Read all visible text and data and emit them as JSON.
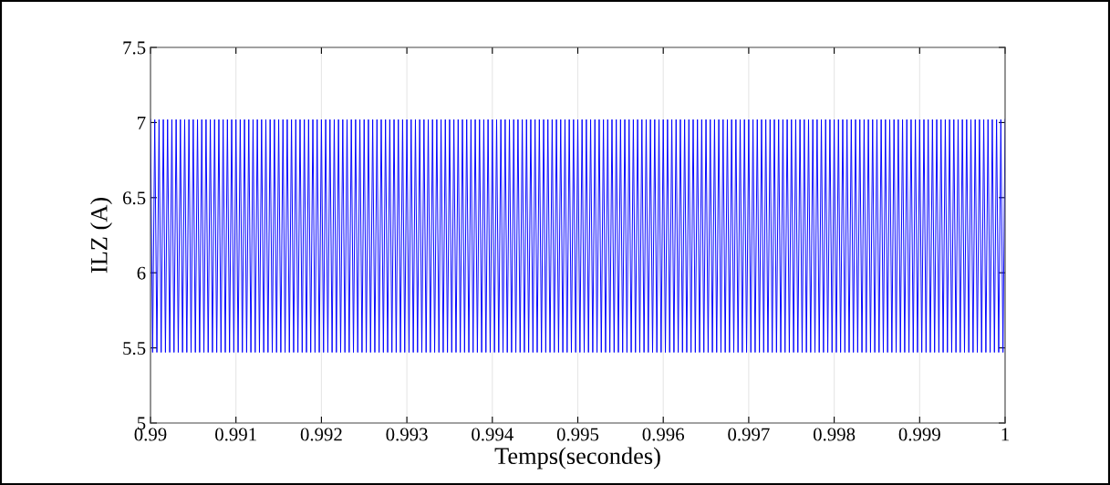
{
  "chart_data": {
    "type": "line",
    "xlabel": "Temps(secondes)",
    "ylabel": "ILZ (A)",
    "xlim": [
      0.99,
      1
    ],
    "ylim": [
      5,
      7.5
    ],
    "xticks": [
      0.99,
      0.991,
      0.992,
      0.993,
      0.994,
      0.995,
      0.996,
      0.997,
      0.998,
      0.999,
      1
    ],
    "yticks": [
      5,
      5.5,
      6,
      6.5,
      7,
      7.5
    ],
    "grid": "x",
    "marker": "none",
    "line_style": "solid",
    "series": [
      {
        "color": "#0000ff",
        "x": [
          0.99,
          0.990025,
          0.99005,
          0.990075,
          0.9901,
          0.990125,
          0.99015,
          0.990175,
          0.9902,
          0.990225,
          0.99025,
          0.990275,
          0.9903,
          0.990325,
          0.99035,
          0.990375,
          0.9904,
          0.990425,
          0.99045,
          0.990475,
          0.9905,
          0.990525,
          0.99055,
          0.990575,
          0.9906,
          0.990625,
          0.99065,
          0.990675,
          0.9907,
          0.990725,
          0.99075,
          0.990775,
          0.9908,
          0.990825,
          0.99085,
          0.990875,
          0.9909,
          0.990925,
          0.99095,
          0.990975,
          0.991,
          0.991025,
          0.99105,
          0.991075,
          0.9911,
          0.991125,
          0.99115,
          0.991175,
          0.9912,
          0.991225,
          0.99125,
          0.991275,
          0.9913,
          0.991325,
          0.99135,
          0.991375,
          0.9914,
          0.991425,
          0.99145,
          0.991475,
          0.9915,
          0.991525,
          0.99155,
          0.991575,
          0.9916,
          0.991625,
          0.99165,
          0.991675,
          0.9917,
          0.991725,
          0.99175,
          0.991775,
          0.9918,
          0.991825,
          0.99185,
          0.991875,
          0.9919,
          0.991925,
          0.99195,
          0.991975,
          0.992,
          0.992025,
          0.99205,
          0.992075,
          0.9921,
          0.992125,
          0.99215,
          0.992175,
          0.9922,
          0.992225,
          0.99225,
          0.992275,
          0.9923,
          0.992325,
          0.99235,
          0.992375,
          0.9924,
          0.992425,
          0.99245,
          0.992475,
          0.9925,
          0.992525,
          0.99255,
          0.992575,
          0.9926,
          0.992625,
          0.99265,
          0.992675,
          0.9927,
          0.992725,
          0.99275,
          0.992775,
          0.9928,
          0.992825,
          0.99285,
          0.992875,
          0.9929,
          0.992925,
          0.99295,
          0.992975,
          0.993,
          0.993025,
          0.99305,
          0.993075,
          0.9931,
          0.993125,
          0.99315,
          0.993175,
          0.9932,
          0.993225,
          0.99325,
          0.993275,
          0.9933,
          0.993325,
          0.99335,
          0.993375,
          0.9934,
          0.993425,
          0.99345,
          0.993475,
          0.9935,
          0.993525,
          0.99355,
          0.993575,
          0.9936,
          0.993625,
          0.99365,
          0.993675,
          0.9937,
          0.993725,
          0.99375,
          0.993775,
          0.9938,
          0.993825,
          0.99385,
          0.993875,
          0.9939,
          0.993925,
          0.99395,
          0.993975,
          0.994,
          0.994025,
          0.99405,
          0.994075,
          0.9941,
          0.994125,
          0.99415,
          0.994175,
          0.9942,
          0.994225,
          0.99425,
          0.994275,
          0.9943,
          0.994325,
          0.99435,
          0.994375,
          0.9944,
          0.994425,
          0.99445,
          0.994475,
          0.9945,
          0.994525,
          0.99455,
          0.994575,
          0.9946,
          0.994625,
          0.99465,
          0.994675,
          0.9947,
          0.994725,
          0.99475,
          0.994775,
          0.9948,
          0.994825,
          0.99485,
          0.994875,
          0.9949,
          0.994925,
          0.99495,
          0.994975,
          0.995,
          0.995025,
          0.99505,
          0.995075,
          0.9951,
          0.995125,
          0.99515,
          0.995175,
          0.9952,
          0.995225,
          0.99525,
          0.995275,
          0.9953,
          0.995325,
          0.99535,
          0.995375,
          0.9954,
          0.995425,
          0.99545,
          0.995475,
          0.9955,
          0.995525,
          0.99555,
          0.995575,
          0.9956,
          0.995625,
          0.99565,
          0.995675,
          0.9957,
          0.995725,
          0.99575,
          0.995775,
          0.9958,
          0.995825,
          0.99585,
          0.995875,
          0.9959,
          0.995925,
          0.99595,
          0.995975,
          0.996,
          0.996025,
          0.99605,
          0.996075,
          0.9961,
          0.996125,
          0.99615,
          0.996175,
          0.9962,
          0.996225,
          0.99625,
          0.996275,
          0.9963,
          0.996325,
          0.99635,
          0.996375,
          0.9964,
          0.996425,
          0.99645,
          0.996475,
          0.9965,
          0.996525,
          0.99655,
          0.996575,
          0.9966,
          0.996625,
          0.99665,
          0.996675,
          0.9967,
          0.996725,
          0.99675,
          0.996775,
          0.9968,
          0.996825,
          0.99685,
          0.996875,
          0.9969,
          0.996925,
          0.99695,
          0.996975,
          0.997,
          0.997025,
          0.99705,
          0.997075,
          0.9971,
          0.997125,
          0.99715,
          0.997175,
          0.9972,
          0.997225,
          0.99725,
          0.997275,
          0.9973,
          0.997325,
          0.99735,
          0.997375,
          0.9974,
          0.997425,
          0.99745,
          0.997475,
          0.9975,
          0.997525,
          0.99755,
          0.997575,
          0.9976,
          0.997625,
          0.99765,
          0.997675,
          0.9977,
          0.997725,
          0.99775,
          0.997775,
          0.9978,
          0.997825,
          0.99785,
          0.997875,
          0.9979,
          0.997925,
          0.99795,
          0.997975,
          0.998,
          0.998025,
          0.99805,
          0.998075,
          0.9981,
          0.998125,
          0.99815,
          0.998175,
          0.9982,
          0.998225,
          0.99825,
          0.998275,
          0.9983,
          0.998325,
          0.99835,
          0.998375,
          0.9984,
          0.998425,
          0.99845,
          0.998475,
          0.9985,
          0.998525,
          0.99855,
          0.998575,
          0.9986,
          0.998625,
          0.99865,
          0.998675,
          0.9987,
          0.998725,
          0.99875,
          0.998775,
          0.9988,
          0.998825,
          0.99885,
          0.998875,
          0.9989,
          0.998925,
          0.99895,
          0.998975,
          0.999,
          0.999025,
          0.99905,
          0.999075,
          0.9991,
          0.999125,
          0.99915,
          0.999175,
          0.9992,
          0.999225,
          0.99925,
          0.999275,
          0.9993,
          0.999325,
          0.99935,
          0.999375,
          0.9994,
          0.999425,
          0.99945,
          0.999475,
          0.9995,
          0.999525,
          0.99955,
          0.999575,
          0.9996,
          0.999625,
          0.99965,
          0.999675,
          0.9997,
          0.999725,
          0.99975,
          0.999775,
          0.9998,
          0.999825,
          0.99985,
          0.999875,
          0.9999,
          0.999925,
          0.99995,
          0.999975,
          1
        ],
        "values": [
          7.02,
          5.47,
          7.02,
          5.47,
          7.02,
          5.47,
          7.02,
          5.47,
          7.02,
          5.47,
          7.02,
          5.47,
          7.02,
          5.47,
          7.02,
          5.47,
          7.02,
          5.47,
          7.02,
          5.47,
          7.02,
          5.47,
          7.02,
          5.47,
          7.02,
          5.47,
          7.02,
          5.47,
          7.02,
          5.47,
          7.02,
          5.47,
          7.02,
          5.47,
          7.02,
          5.47,
          7.02,
          5.47,
          7.02,
          5.47,
          7.02,
          5.47,
          7.02,
          5.47,
          7.02,
          5.47,
          7.02,
          5.47,
          7.02,
          5.47,
          7.02,
          5.47,
          7.02,
          5.47,
          7.02,
          5.47,
          7.02,
          5.47,
          7.02,
          5.47,
          7.02,
          5.47,
          7.02,
          5.47,
          7.02,
          5.47,
          7.02,
          5.47,
          7.02,
          5.47,
          7.02,
          5.47,
          7.02,
          5.47,
          7.02,
          5.47,
          7.02,
          5.47,
          7.02,
          5.47,
          7.02,
          5.47,
          7.02,
          5.47,
          7.02,
          5.47,
          7.02,
          5.47,
          7.02,
          5.47,
          7.02,
          5.47,
          7.02,
          5.47,
          7.02,
          5.47,
          7.02,
          5.47,
          7.02,
          5.47,
          7.02,
          5.47,
          7.02,
          5.47,
          7.02,
          5.47,
          7.02,
          5.47,
          7.02,
          5.47,
          7.02,
          5.47,
          7.02,
          5.47,
          7.02,
          5.47,
          7.02,
          5.47,
          7.02,
          5.47,
          7.02,
          5.47,
          7.02,
          5.47,
          7.02,
          5.47,
          7.02,
          5.47,
          7.02,
          5.47,
          7.02,
          5.47,
          7.02,
          5.47,
          7.02,
          5.47,
          7.02,
          5.47,
          7.02,
          5.47,
          7.02,
          5.47,
          7.02,
          5.47,
          7.02,
          5.47,
          7.02,
          5.47,
          7.02,
          5.47,
          7.02,
          5.47,
          7.02,
          5.47,
          7.02,
          5.47,
          7.02,
          5.47,
          7.02,
          5.47,
          7.02,
          5.47,
          7.02,
          5.47,
          7.02,
          5.47,
          7.02,
          5.47,
          7.02,
          5.47,
          7.02,
          5.47,
          7.02,
          5.47,
          7.02,
          5.47,
          7.02,
          5.47,
          7.02,
          5.47,
          7.02,
          5.47,
          7.02,
          5.47,
          7.02,
          5.47,
          7.02,
          5.47,
          7.02,
          5.47,
          7.02,
          5.47,
          7.02,
          5.47,
          7.02,
          5.47,
          7.02,
          5.47,
          7.02,
          5.47,
          7.02,
          5.47,
          7.02,
          5.47,
          7.02,
          5.47,
          7.02,
          5.47,
          7.02,
          5.47,
          7.02,
          5.47,
          7.02,
          5.47,
          7.02,
          5.47,
          7.02,
          5.47,
          7.02,
          5.47,
          7.02,
          5.47,
          7.02,
          5.47,
          7.02,
          5.47,
          7.02,
          5.47,
          7.02,
          5.47,
          7.02,
          5.47,
          7.02,
          5.47,
          7.02,
          5.47,
          7.02,
          5.47,
          7.02,
          5.47,
          7.02,
          5.47,
          7.02,
          5.47,
          7.02,
          5.47,
          7.02,
          5.47,
          7.02,
          5.47,
          7.02,
          5.47,
          7.02,
          5.47,
          7.02,
          5.47,
          7.02,
          5.47,
          7.02,
          5.47,
          7.02,
          5.47,
          7.02,
          5.47,
          7.02,
          5.47,
          7.02,
          5.47,
          7.02,
          5.47,
          7.02,
          5.47,
          7.02,
          5.47,
          7.02,
          5.47,
          7.02,
          5.47,
          7.02,
          5.47,
          7.02,
          5.47,
          7.02,
          5.47,
          7.02,
          5.47,
          7.02,
          5.47,
          7.02,
          5.47,
          7.02,
          5.47,
          7.02,
          5.47,
          7.02,
          5.47,
          7.02,
          5.47,
          7.02,
          5.47,
          7.02,
          5.47,
          7.02,
          5.47,
          7.02,
          5.47,
          7.02,
          5.47,
          7.02,
          5.47,
          7.02,
          5.47,
          7.02,
          5.47,
          7.02,
          5.47,
          7.02,
          5.47,
          7.02,
          5.47,
          7.02,
          5.47,
          7.02,
          5.47,
          7.02,
          5.47,
          7.02,
          5.47,
          7.02,
          5.47,
          7.02,
          5.47,
          7.02,
          5.47,
          7.02,
          5.47,
          7.02,
          5.47,
          7.02,
          5.47,
          7.02,
          5.47,
          7.02,
          5.47,
          7.02,
          5.47,
          7.02,
          5.47,
          7.02,
          5.47,
          7.02,
          5.47,
          7.02,
          5.47,
          7.02,
          5.47,
          7.02,
          5.47,
          7.02,
          5.47,
          7.02,
          5.47,
          7.02,
          5.47,
          7.02,
          5.47,
          7.02,
          5.47,
          7.02,
          5.47,
          7.02,
          5.47,
          7.02,
          5.47,
          7.02,
          5.47,
          7.02,
          5.47,
          7.02,
          5.47,
          7.02,
          5.47,
          7.02,
          5.47,
          7.02,
          5.47,
          7.02,
          5.47,
          7.02,
          5.47,
          7.02,
          5.47,
          7.02,
          5.47,
          7.02,
          5.47,
          7.02,
          5.47,
          7.02,
          5.47,
          7.02
        ]
      }
    ]
  }
}
